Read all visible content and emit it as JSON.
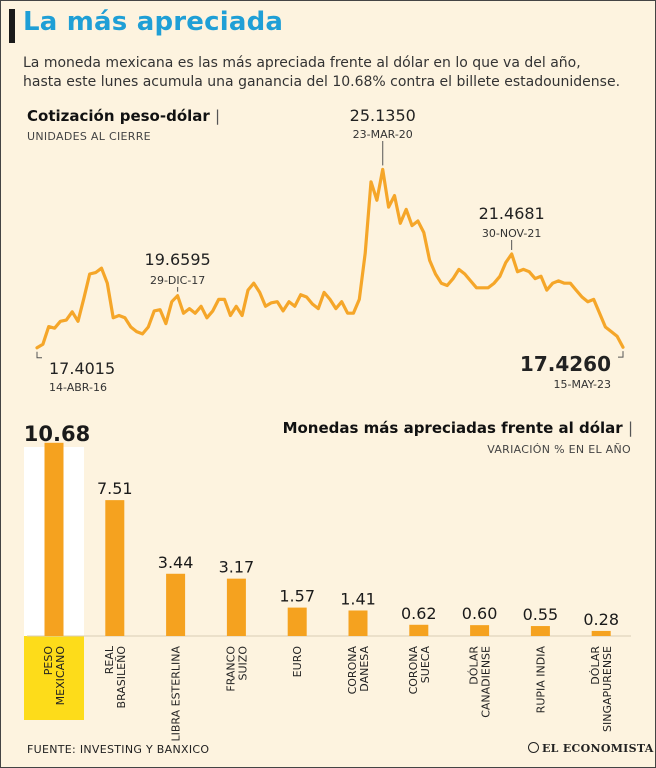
{
  "header": {
    "title": "La más apreciada",
    "subtitle": "La moneda mexicana es las más apreciada frente al dólar en lo que va del año, hasta este lunes acumula una ganancia del 10.68% contra el billete estadounidense."
  },
  "footer": {
    "source": "FUENTE: INVESTING Y BANXICO",
    "logo": "EL ECONOMISTA"
  },
  "colors": {
    "line": "#f5a629",
    "bar": "#f5a21f",
    "highlight": "#fddc1a",
    "title": "#1f9fd6"
  },
  "chart_data": [
    {
      "type": "line",
      "title": "Cotización peso-dólar",
      "subtitle": "UNIDADES AL CIERRE",
      "x_range": [
        "14-ABR-16",
        "15-MAY-23"
      ],
      "ylim": [
        17.0,
        25.5
      ],
      "values": [
        17.4,
        17.55,
        18.32,
        18.25,
        18.55,
        18.6,
        18.96,
        18.55,
        19.55,
        20.6,
        20.66,
        20.85,
        20.2,
        18.7,
        18.8,
        18.7,
        18.3,
        18.1,
        18.0,
        18.3,
        19.0,
        19.05,
        18.45,
        19.4,
        19.66,
        18.9,
        19.1,
        18.9,
        19.2,
        18.7,
        19.0,
        19.5,
        19.5,
        18.8,
        19.2,
        18.8,
        19.9,
        20.2,
        19.8,
        19.2,
        19.35,
        19.4,
        19.0,
        19.4,
        19.2,
        19.7,
        19.6,
        19.3,
        19.1,
        19.8,
        19.5,
        19.1,
        19.4,
        18.9,
        18.9,
        19.5,
        21.5,
        24.6,
        23.8,
        25.135,
        23.5,
        24.0,
        22.8,
        23.4,
        22.7,
        22.9,
        22.4,
        21.2,
        20.6,
        20.2,
        20.1,
        20.4,
        20.8,
        20.6,
        20.3,
        20.0,
        20.0,
        20.0,
        20.2,
        20.5,
        21.1,
        21.4681,
        20.7,
        20.8,
        20.7,
        20.4,
        20.5,
        19.9,
        20.2,
        20.3,
        20.2,
        20.2,
        19.9,
        19.6,
        19.4,
        19.5,
        18.9,
        18.3,
        18.1,
        17.9,
        17.426
      ],
      "annotations": [
        {
          "value": "17.4015",
          "date": "14-ABR-16"
        },
        {
          "value": "19.6595",
          "date": "29-DIC-17"
        },
        {
          "value": "25.1350",
          "date": "23-MAR-20"
        },
        {
          "value": "21.4681",
          "date": "30-NOV-21"
        },
        {
          "value": "17.4260",
          "date": "15-MAY-23"
        }
      ]
    },
    {
      "type": "bar",
      "title": "Monedas más apreciadas frente al dólar",
      "subtitle": "VARIACIÓN % EN EL AÑO",
      "ylim": [
        0,
        11
      ],
      "categories": [
        [
          "PESO",
          "MEXICANO"
        ],
        [
          "REAL",
          "BRASILEÑO"
        ],
        [
          "LIBRA ESTERLINA"
        ],
        [
          "FRANCO",
          "SUIZO"
        ],
        [
          "EURO"
        ],
        [
          "CORONA",
          "DANESA"
        ],
        [
          "CORONA",
          "SUECA"
        ],
        [
          "DÓLAR",
          "CANADIENSE"
        ],
        [
          "RUPIA INDIA"
        ],
        [
          "DÓLAR",
          "SINGAPURENSE"
        ]
      ],
      "values": [
        10.68,
        7.51,
        3.44,
        3.17,
        1.57,
        1.41,
        0.62,
        0.6,
        0.55,
        0.28
      ],
      "labels": [
        "10.68",
        "7.51",
        "3.44",
        "3.17",
        "1.57",
        "1.41",
        "0.62",
        "0.60",
        "0.55",
        "0.28"
      ]
    }
  ]
}
